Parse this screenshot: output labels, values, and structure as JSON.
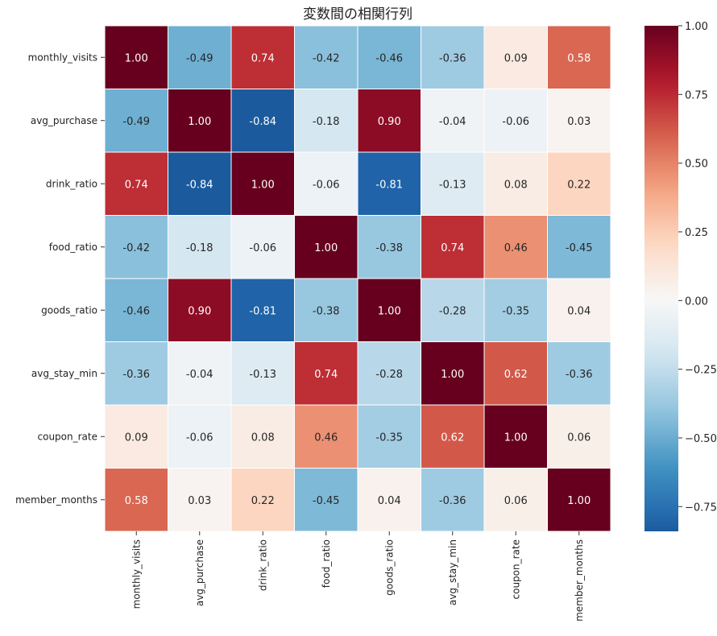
{
  "chart_data": {
    "type": "heatmap",
    "title": "変数間の相関行列",
    "xlabel": "",
    "ylabel": "",
    "x_categories": [
      "monthly_visits",
      "avg_purchase",
      "drink_ratio",
      "food_ratio",
      "goods_ratio",
      "avg_stay_min",
      "coupon_rate",
      "member_months"
    ],
    "y_categories": [
      "monthly_visits",
      "avg_purchase",
      "drink_ratio",
      "food_ratio",
      "goods_ratio",
      "avg_stay_min",
      "coupon_rate",
      "member_months"
    ],
    "values": [
      [
        1.0,
        -0.49,
        0.74,
        -0.42,
        -0.46,
        -0.36,
        0.09,
        0.58
      ],
      [
        -0.49,
        1.0,
        -0.84,
        -0.18,
        0.9,
        -0.04,
        -0.06,
        0.03
      ],
      [
        0.74,
        -0.84,
        1.0,
        -0.06,
        -0.81,
        -0.13,
        0.08,
        0.22
      ],
      [
        -0.42,
        -0.18,
        -0.06,
        1.0,
        -0.38,
        0.74,
        0.46,
        -0.45
      ],
      [
        -0.46,
        0.9,
        -0.81,
        -0.38,
        1.0,
        -0.28,
        -0.35,
        0.04
      ],
      [
        -0.36,
        -0.04,
        -0.13,
        0.74,
        -0.28,
        1.0,
        0.62,
        -0.36
      ],
      [
        0.09,
        -0.06,
        0.08,
        0.46,
        -0.35,
        0.62,
        1.0,
        0.06
      ],
      [
        0.58,
        0.03,
        0.22,
        -0.45,
        0.04,
        -0.36,
        0.06,
        1.0
      ]
    ],
    "value_format": "0.00",
    "colormap": "RdBu_r",
    "colormap_center": 0.0,
    "colorbar": {
      "range": [
        -0.84,
        1.0
      ],
      "ticks": [
        1.0,
        0.75,
        0.5,
        0.25,
        0.0,
        -0.25,
        -0.5,
        -0.75
      ],
      "tick_labels": [
        "1.00",
        "0.75",
        "0.50",
        "0.25",
        "0.00",
        "−0.25",
        "−0.50",
        "−0.75"
      ],
      "placement": "right"
    },
    "cell_border_color": "#ffffff",
    "annotations_on": true,
    "grid": false
  }
}
